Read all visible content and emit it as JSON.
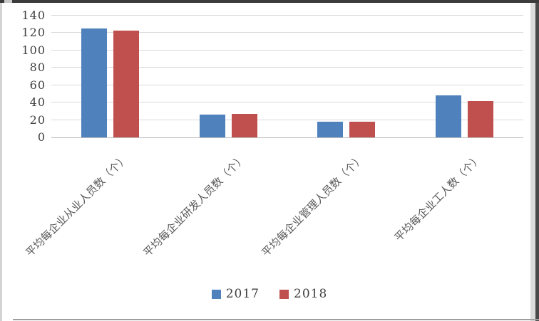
{
  "chart_data": {
    "type": "bar",
    "categories": [
      "平均每企业从业人员数（个）",
      "平均每企业研发人员数（个）",
      "平均每企业管理人员数（个）",
      "平均每企业工人数（个）"
    ],
    "series": [
      {
        "name": "2017",
        "color": "#4F81BD",
        "values": [
          125,
          26,
          18,
          48
        ]
      },
      {
        "name": "2018",
        "color": "#C0504D",
        "values": [
          123,
          27,
          18,
          42
        ]
      }
    ],
    "title": "",
    "xlabel": "",
    "ylabel": "",
    "ylim": [
      0,
      140
    ],
    "yticks": [
      0,
      20,
      40,
      60,
      80,
      100,
      120,
      140
    ],
    "grid": true,
    "legend_position": "bottom",
    "bar_orientation": "vertical",
    "category_label_rotation_deg": 45
  },
  "colors": {
    "series_2017": "#4F81BD",
    "series_2018": "#C0504D",
    "gridline": "#D9D9D9",
    "axis_line": "#BFBFBF",
    "tick_text": "#404040",
    "category_text": "#595959"
  }
}
